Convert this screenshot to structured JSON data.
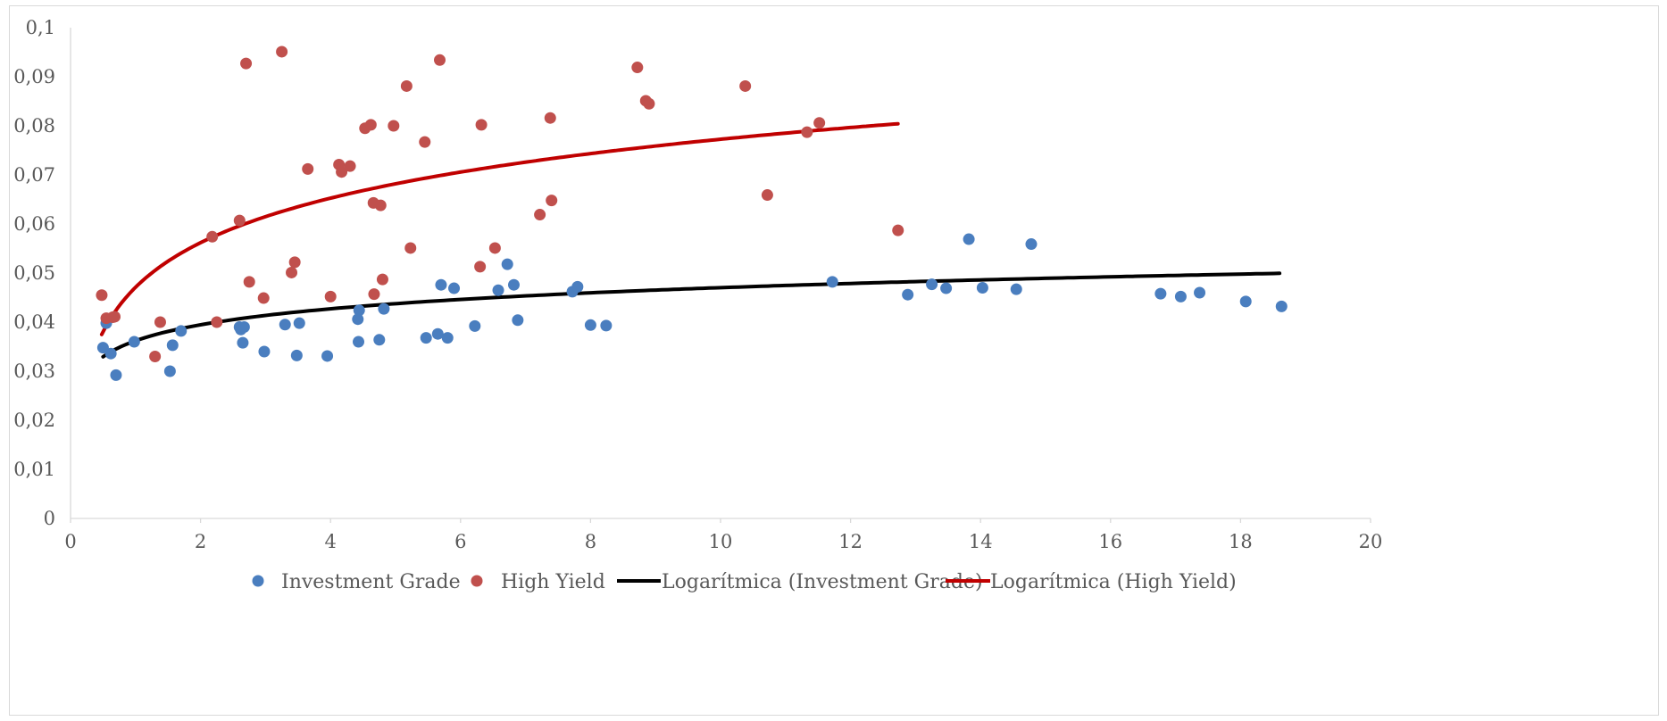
{
  "chart_data": {
    "type": "scatter",
    "title": "",
    "xlabel": "",
    "ylabel": "",
    "xlim": [
      0,
      20
    ],
    "ylim": [
      0,
      0.1
    ],
    "x_ticks": [
      "0",
      "2",
      "4",
      "6",
      "8",
      "10",
      "12",
      "14",
      "16",
      "18",
      "20"
    ],
    "y_ticks": [
      "0",
      "0,01",
      "0,02",
      "0,03",
      "0,04",
      "0,05",
      "0,06",
      "0,07",
      "0,08",
      "0,09",
      "0,1"
    ],
    "grid": false,
    "legend_position": "bottom",
    "series": [
      {
        "name": "Investment Grade",
        "color": "#4a7ebf",
        "points": [
          [
            0.5,
            0.0348
          ],
          [
            0.55,
            0.0398
          ],
          [
            0.62,
            0.0336
          ],
          [
            0.7,
            0.0292
          ],
          [
            0.98,
            0.036
          ],
          [
            1.53,
            0.03
          ],
          [
            1.57,
            0.0353
          ],
          [
            1.7,
            0.0382
          ],
          [
            2.6,
            0.039
          ],
          [
            2.62,
            0.0385
          ],
          [
            2.65,
            0.0358
          ],
          [
            2.67,
            0.039
          ],
          [
            2.98,
            0.034
          ],
          [
            3.3,
            0.0395
          ],
          [
            3.48,
            0.0332
          ],
          [
            3.52,
            0.0398
          ],
          [
            3.95,
            0.0331
          ],
          [
            4.42,
            0.0406
          ],
          [
            4.43,
            0.036
          ],
          [
            4.44,
            0.0424
          ],
          [
            4.75,
            0.0364
          ],
          [
            4.82,
            0.0427
          ],
          [
            5.47,
            0.0368
          ],
          [
            5.65,
            0.0376
          ],
          [
            5.7,
            0.0476
          ],
          [
            5.8,
            0.0368
          ],
          [
            5.9,
            0.0469
          ],
          [
            6.22,
            0.0392
          ],
          [
            6.58,
            0.0465
          ],
          [
            6.72,
            0.0518
          ],
          [
            6.82,
            0.0476
          ],
          [
            6.88,
            0.0404
          ],
          [
            7.72,
            0.0462
          ],
          [
            7.8,
            0.0472
          ],
          [
            8.0,
            0.0394
          ],
          [
            8.24,
            0.0393
          ],
          [
            11.72,
            0.0482
          ],
          [
            12.88,
            0.0456
          ],
          [
            13.25,
            0.0477
          ],
          [
            13.47,
            0.0469
          ],
          [
            13.82,
            0.0569
          ],
          [
            14.03,
            0.047
          ],
          [
            14.55,
            0.0467
          ],
          [
            14.78,
            0.0559
          ],
          [
            16.77,
            0.0458
          ],
          [
            17.08,
            0.0452
          ],
          [
            17.37,
            0.046
          ],
          [
            18.08,
            0.0442
          ],
          [
            18.63,
            0.0432
          ]
        ]
      },
      {
        "name": "High Yield",
        "color": "#c0504d",
        "points": [
          [
            0.48,
            0.0455
          ],
          [
            0.55,
            0.0408
          ],
          [
            0.65,
            0.041
          ],
          [
            0.68,
            0.0411
          ],
          [
            1.3,
            0.033
          ],
          [
            1.38,
            0.04
          ],
          [
            2.18,
            0.0574
          ],
          [
            2.25,
            0.04
          ],
          [
            2.6,
            0.0607
          ],
          [
            2.7,
            0.0927
          ],
          [
            2.75,
            0.0482
          ],
          [
            2.97,
            0.0449
          ],
          [
            3.25,
            0.0951
          ],
          [
            3.4,
            0.0501
          ],
          [
            3.45,
            0.0522
          ],
          [
            3.65,
            0.0712
          ],
          [
            4.0,
            0.0452
          ],
          [
            4.13,
            0.0721
          ],
          [
            4.17,
            0.0706
          ],
          [
            4.3,
            0.0718
          ],
          [
            4.53,
            0.0795
          ],
          [
            4.62,
            0.0802
          ],
          [
            4.66,
            0.0643
          ],
          [
            4.67,
            0.0457
          ],
          [
            4.77,
            0.0638
          ],
          [
            4.8,
            0.0487
          ],
          [
            4.97,
            0.08
          ],
          [
            5.17,
            0.0881
          ],
          [
            5.23,
            0.0551
          ],
          [
            5.45,
            0.0767
          ],
          [
            5.68,
            0.0934
          ],
          [
            6.3,
            0.0513
          ],
          [
            6.32,
            0.0802
          ],
          [
            6.53,
            0.0551
          ],
          [
            7.22,
            0.0619
          ],
          [
            7.38,
            0.0816
          ],
          [
            7.4,
            0.0648
          ],
          [
            8.72,
            0.0919
          ],
          [
            8.85,
            0.0851
          ],
          [
            8.9,
            0.0845
          ],
          [
            10.38,
            0.0881
          ],
          [
            10.72,
            0.0659
          ],
          [
            11.33,
            0.0787
          ],
          [
            11.52,
            0.0806
          ],
          [
            12.73,
            0.0587
          ]
        ]
      }
    ],
    "trendlines": [
      {
        "name": "Logarítmica (Investment Grade)",
        "type": "logarithmic",
        "color": "#000000",
        "a": 0.0362,
        "b": 0.0047,
        "x_range": [
          0.5,
          18.6
        ]
      },
      {
        "name": "Logarítmica (High Yield)",
        "type": "logarithmic",
        "color": "#c00000",
        "a": 0.0471,
        "b": 0.0131,
        "x_range": [
          0.48,
          12.73
        ]
      }
    ]
  }
}
